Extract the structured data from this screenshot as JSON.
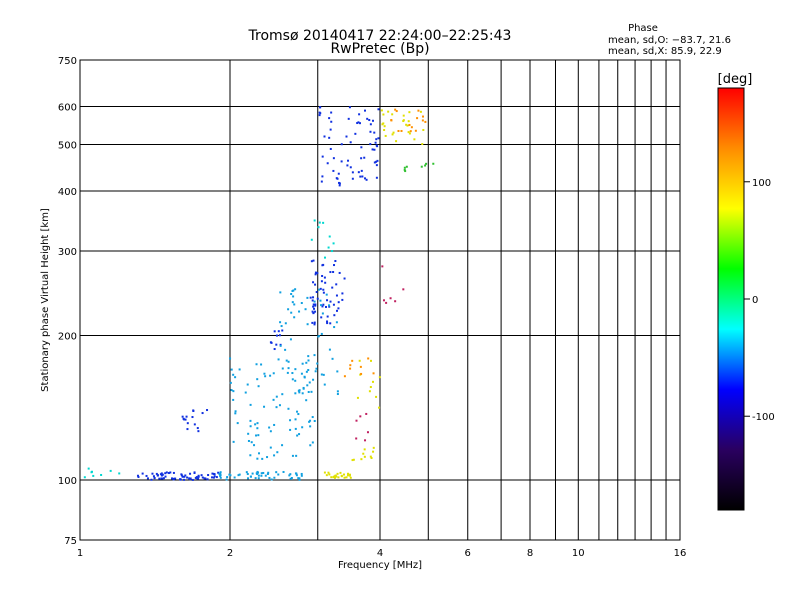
{
  "chart_data": {
    "type": "scatter",
    "title": "Tromsø 20140417 22:24:00–22:25:43",
    "subtitle": "RwPretec (Bp)",
    "xlabel": "Frequency [MHz]",
    "ylabel": "Stationary phase Virtual Height [km]",
    "x_scale": "log",
    "y_scale": "log",
    "xlim": [
      1,
      16
    ],
    "ylim": [
      75,
      750
    ],
    "x_ticks": [
      1,
      2,
      4,
      6,
      8,
      10,
      16
    ],
    "x_minor_ticks": [
      3,
      5,
      7,
      9,
      11,
      12,
      13,
      14,
      15
    ],
    "y_ticks": [
      75,
      100,
      200,
      300,
      400,
      500,
      600,
      750
    ],
    "grid": true,
    "phase_stats": {
      "heading": "Phase",
      "o_line": "mean, sd,O: −83.7, 21.6",
      "x_line": "mean, sd,X:  85.9, 22.9"
    },
    "colorbar": {
      "label": "[deg]",
      "range": [
        -180,
        180
      ],
      "ticks": [
        100,
        0,
        -100
      ],
      "colors": [
        "#ff0000",
        "#ff8c00",
        "#ffff00",
        "#00ff00",
        "#00ffff",
        "#0000ff",
        "#2a0060",
        "#000000"
      ]
    },
    "series": [
      {
        "color": "#1030e0",
        "clusters": [
          {
            "x": [
              1.3,
              1.9
            ],
            "y": [
              100,
              104
            ],
            "n": 70
          },
          {
            "x": [
              1.6,
              1.8
            ],
            "y": [
              125,
              140
            ],
            "n": 15
          },
          {
            "x": [
              2.4,
              2.6
            ],
            "y": [
              185,
              205
            ],
            "n": 10
          },
          {
            "x": [
              2.9,
              3.4
            ],
            "y": [
              210,
              290
            ],
            "n": 60
          },
          {
            "x": [
              3.0,
              4.0
            ],
            "y": [
              410,
              600
            ],
            "n": 70
          }
        ]
      },
      {
        "color": "#10a0e0",
        "clusters": [
          {
            "x": [
              1.9,
              2.8
            ],
            "y": [
              100,
              104
            ],
            "n": 50
          },
          {
            "x": [
              2.0,
              3.0
            ],
            "y": [
              110,
              180
            ],
            "n": 90
          },
          {
            "x": [
              2.5,
              3.3
            ],
            "y": [
              150,
              250
            ],
            "n": 60
          }
        ]
      },
      {
        "color": "#00d8d0",
        "clusters": [
          {
            "x": [
              1.02,
              1.2
            ],
            "y": [
              98,
              106
            ],
            "n": 8
          },
          {
            "x": [
              2.9,
              3.3
            ],
            "y": [
              280,
              350
            ],
            "n": 10
          }
        ]
      },
      {
        "color": "#e0e000",
        "clusters": [
          {
            "x": [
              3.1,
              3.5
            ],
            "y": [
              101,
              104
            ],
            "n": 25
          },
          {
            "x": [
              3.5,
              3.9
            ],
            "y": [
              110,
              118
            ],
            "n": 10
          },
          {
            "x": [
              3.6,
              4.0
            ],
            "y": [
              140,
              180
            ],
            "n": 10
          },
          {
            "x": [
              4.0,
              4.9
            ],
            "y": [
              500,
              590
            ],
            "n": 25
          }
        ]
      },
      {
        "color": "#ff9000",
        "clusters": [
          {
            "x": [
              3.4,
              3.9
            ],
            "y": [
              160,
              190
            ],
            "n": 8
          },
          {
            "x": [
              4.2,
              5.0
            ],
            "y": [
              520,
              600
            ],
            "n": 15
          }
        ]
      },
      {
        "color": "#30c030",
        "clusters": [
          {
            "x": [
              4.4,
              5.2
            ],
            "y": [
              440,
              470
            ],
            "n": 8
          }
        ]
      },
      {
        "color": "#c02060",
        "clusters": [
          {
            "x": [
              3.4,
              3.8
            ],
            "y": [
              120,
              140
            ],
            "n": 6
          },
          {
            "x": [
              4.0,
              4.6
            ],
            "y": [
              230,
              280
            ],
            "n": 6
          }
        ]
      }
    ]
  }
}
